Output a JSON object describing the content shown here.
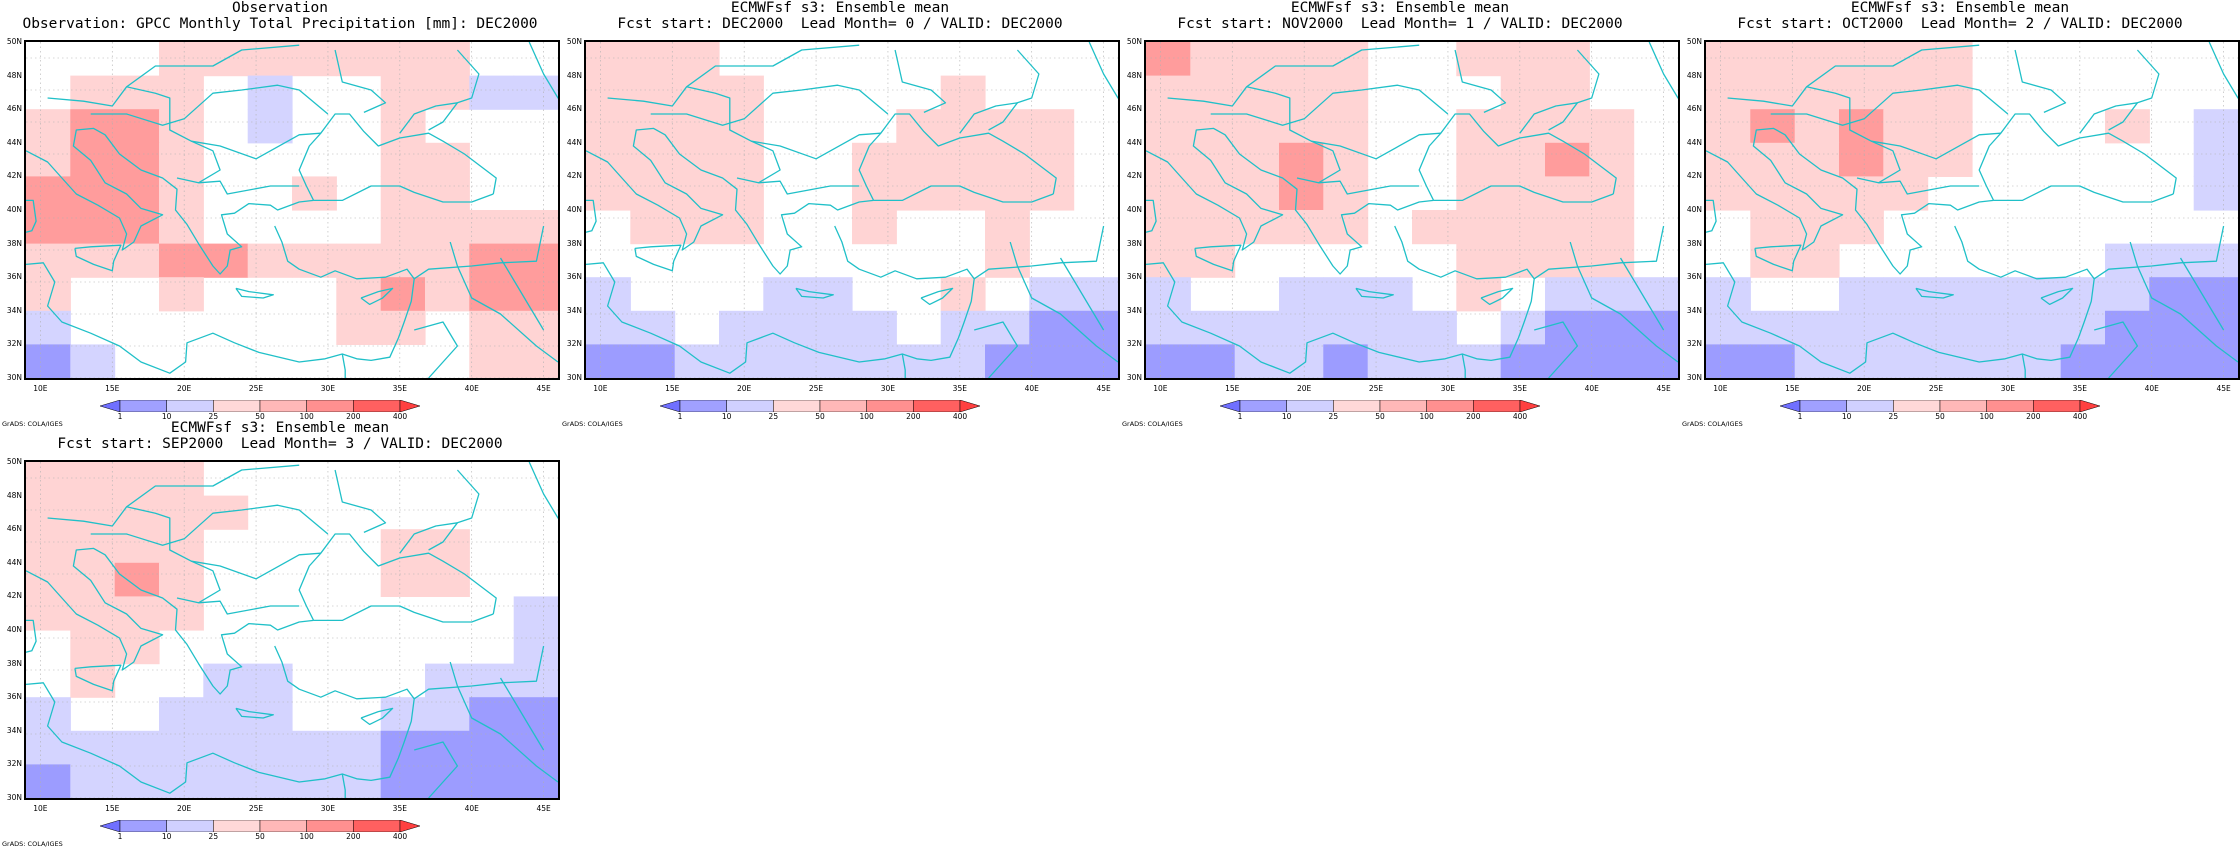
{
  "panels": [
    {
      "title_line1": "Observation",
      "title_line2": "Observation: GPCC Monthly Total Precipitation [mm]: DEC2000",
      "field": [
        [
          0,
          0,
          0,
          1,
          1,
          1,
          1,
          1,
          1,
          1,
          0,
          0
        ],
        [
          0,
          1,
          1,
          1,
          0,
          -1,
          0,
          0,
          1,
          1,
          -1,
          -1
        ],
        [
          1,
          2,
          2,
          1,
          0,
          -1,
          0,
          0,
          1,
          0,
          0,
          0
        ],
        [
          1,
          2,
          2,
          1,
          0,
          0,
          0,
          0,
          1,
          1,
          0,
          0
        ],
        [
          2,
          2,
          2,
          1,
          0,
          0,
          1,
          0,
          1,
          1,
          0,
          0
        ],
        [
          2,
          2,
          2,
          1,
          0,
          0,
          0,
          0,
          1,
          1,
          1,
          1
        ],
        [
          1,
          1,
          1,
          2,
          2,
          1,
          1,
          1,
          1,
          1,
          2,
          2
        ],
        [
          1,
          0,
          0,
          1,
          0,
          0,
          0,
          1,
          2,
          1,
          2,
          2
        ],
        [
          -1,
          0,
          0,
          0,
          0,
          0,
          0,
          1,
          1,
          0,
          1,
          1
        ],
        [
          -2,
          -1,
          0,
          0,
          0,
          0,
          0,
          0,
          0,
          0,
          1,
          1
        ]
      ]
    },
    {
      "title_line1": "ECMWFsf s3: Ensemble mean",
      "title_line2": "Fcst start: DEC2000  Lead Month= 0 / VALID: DEC2000",
      "field": [
        [
          1,
          1,
          1,
          0,
          0,
          0,
          0,
          0,
          0,
          0,
          0,
          0
        ],
        [
          1,
          1,
          1,
          1,
          0,
          0,
          0,
          0,
          1,
          0,
          0,
          0
        ],
        [
          1,
          1,
          1,
          1,
          0,
          0,
          0,
          1,
          1,
          1,
          1,
          0
        ],
        [
          1,
          1,
          1,
          1,
          0,
          0,
          1,
          1,
          1,
          1,
          1,
          0
        ],
        [
          1,
          1,
          1,
          1,
          0,
          0,
          1,
          1,
          1,
          1,
          1,
          0
        ],
        [
          0,
          1,
          1,
          1,
          0,
          0,
          1,
          0,
          0,
          1,
          0,
          0
        ],
        [
          0,
          0,
          0,
          0,
          0,
          0,
          0,
          0,
          0,
          1,
          0,
          0
        ],
        [
          -1,
          0,
          0,
          0,
          -1,
          -1,
          0,
          0,
          1,
          0,
          -1,
          -1
        ],
        [
          -1,
          -1,
          0,
          -1,
          -1,
          -1,
          -1,
          0,
          -1,
          -1,
          -2,
          -2
        ],
        [
          -2,
          -2,
          -1,
          -1,
          -1,
          -1,
          -1,
          -1,
          -1,
          -2,
          -2,
          -2
        ]
      ]
    },
    {
      "title_line1": "ECMWFsf s3: Ensemble mean",
      "title_line2": "Fcst start: NOV2000  Lead Month= 1 / VALID: DEC2000",
      "field": [
        [
          2,
          1,
          1,
          1,
          1,
          0,
          0,
          1,
          1,
          1,
          0,
          0
        ],
        [
          1,
          1,
          1,
          1,
          1,
          0,
          0,
          0,
          1,
          1,
          0,
          0
        ],
        [
          1,
          1,
          1,
          1,
          1,
          0,
          0,
          1,
          1,
          1,
          1,
          0
        ],
        [
          1,
          1,
          1,
          2,
          1,
          0,
          0,
          1,
          1,
          2,
          1,
          0
        ],
        [
          1,
          1,
          1,
          2,
          1,
          0,
          0,
          1,
          1,
          1,
          1,
          0
        ],
        [
          1,
          1,
          1,
          1,
          1,
          0,
          1,
          1,
          1,
          1,
          1,
          0
        ],
        [
          1,
          1,
          0,
          0,
          0,
          0,
          0,
          1,
          1,
          1,
          1,
          0
        ],
        [
          -1,
          0,
          0,
          -1,
          -1,
          -1,
          0,
          1,
          0,
          -1,
          -1,
          -1
        ],
        [
          -1,
          -1,
          -1,
          -1,
          -1,
          -1,
          -1,
          0,
          -1,
          -2,
          -2,
          -2
        ],
        [
          -2,
          -2,
          -1,
          -1,
          -2,
          -1,
          -1,
          -1,
          -2,
          -2,
          -2,
          -2
        ]
      ]
    },
    {
      "title_line1": "ECMWFsf s3: Ensemble mean",
      "title_line2": "Fcst start: OCT2000  Lead Month= 2 / VALID: DEC2000",
      "field": [
        [
          1,
          1,
          1,
          1,
          1,
          1,
          0,
          0,
          0,
          0,
          0,
          0
        ],
        [
          1,
          1,
          1,
          1,
          1,
          1,
          0,
          0,
          0,
          0,
          0,
          0
        ],
        [
          1,
          2,
          1,
          2,
          1,
          1,
          0,
          0,
          0,
          1,
          0,
          -1
        ],
        [
          1,
          1,
          1,
          2,
          1,
          1,
          0,
          0,
          0,
          0,
          0,
          -1
        ],
        [
          1,
          1,
          1,
          1,
          1,
          0,
          0,
          0,
          0,
          0,
          0,
          -1
        ],
        [
          0,
          1,
          1,
          1,
          0,
          0,
          0,
          0,
          0,
          0,
          0,
          0
        ],
        [
          0,
          1,
          1,
          0,
          0,
          0,
          0,
          0,
          0,
          -1,
          -1,
          -1
        ],
        [
          -1,
          0,
          0,
          -1,
          -1,
          -1,
          -1,
          -1,
          -1,
          -1,
          -2,
          -2
        ],
        [
          -1,
          -1,
          -1,
          -1,
          -1,
          -1,
          -1,
          -1,
          -1,
          -2,
          -2,
          -2
        ],
        [
          -2,
          -2,
          -1,
          -1,
          -1,
          -1,
          -1,
          -1,
          -2,
          -2,
          -2,
          -2
        ]
      ]
    },
    {
      "title_line1": "ECMWFsf s3: Ensemble mean",
      "title_line2": "Fcst start: SEP2000  Lead Month= 3 / VALID: DEC2000",
      "field": [
        [
          1,
          1,
          1,
          1,
          0,
          0,
          0,
          0,
          0,
          0,
          0,
          0
        ],
        [
          1,
          1,
          1,
          1,
          1,
          0,
          0,
          0,
          0,
          0,
          0,
          0
        ],
        [
          1,
          1,
          1,
          1,
          0,
          0,
          0,
          0,
          1,
          1,
          0,
          0
        ],
        [
          1,
          1,
          2,
          1,
          0,
          0,
          0,
          0,
          1,
          1,
          0,
          0
        ],
        [
          1,
          1,
          1,
          1,
          0,
          0,
          0,
          0,
          0,
          0,
          0,
          -1
        ],
        [
          0,
          1,
          1,
          0,
          0,
          0,
          0,
          0,
          0,
          0,
          0,
          -1
        ],
        [
          0,
          1,
          0,
          0,
          -1,
          -1,
          0,
          0,
          0,
          -1,
          -1,
          -1
        ],
        [
          -1,
          0,
          0,
          -1,
          -1,
          -1,
          0,
          0,
          -1,
          -1,
          -2,
          -2
        ],
        [
          -1,
          -1,
          -1,
          -1,
          -1,
          -1,
          -1,
          -1,
          -2,
          -2,
          -2,
          -2
        ],
        [
          -2,
          -1,
          -1,
          -1,
          -1,
          -1,
          -1,
          -1,
          -2,
          -2,
          -2,
          -2
        ]
      ]
    }
  ],
  "lat_labels": [
    "50N",
    "48N",
    "46N",
    "44N",
    "42N",
    "40N",
    "38N",
    "36N",
    "34N",
    "32N",
    "30N"
  ],
  "lon_labels": [
    "10E",
    "15E",
    "20E",
    "25E",
    "30E",
    "35E",
    "40E",
    "45E"
  ],
  "colorbar_labels": [
    "1",
    "10",
    "25",
    "50",
    "100",
    "200",
    "400"
  ],
  "colorbar_colors": [
    "#7070ff",
    "#a0a0ff",
    "#d0d0ff",
    "#ffd8d8",
    "#ffb8b8",
    "#ff9090",
    "#ff6060",
    "#ff4040"
  ],
  "grads_label": "GrADS: COLA/IGES",
  "colors": {
    "coast": "#20c0c8",
    "grid": "#b0b0b0",
    "neg2": "#9c9cff",
    "neg1": "#d4d4ff",
    "pos1": "#ffd4d4",
    "pos2": "#ff9c9c"
  }
}
